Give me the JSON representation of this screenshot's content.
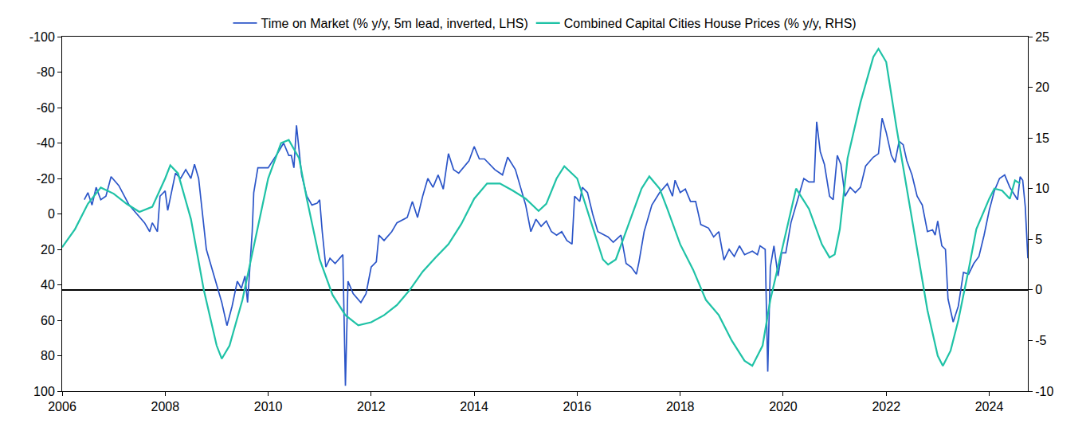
{
  "chart_data": {
    "type": "line",
    "legend": "top",
    "grid": false,
    "xlim": [
      2006,
      2024.75
    ],
    "xticks": [
      2006,
      2008,
      2010,
      2012,
      2014,
      2016,
      2018,
      2020,
      2022,
      2024
    ],
    "ylim": [
      100,
      -100
    ],
    "yticks": [
      -100,
      -80,
      -60,
      -40,
      -20,
      0,
      20,
      40,
      60,
      80,
      100
    ],
    "y2lim": [
      -10,
      25
    ],
    "y2ticks": [
      -10,
      -5,
      0,
      5,
      10,
      15,
      20,
      25
    ],
    "series": [
      {
        "name": "Time on Market (% y/y, 5m lead, inverted, LHS)",
        "color": "#2b55c8",
        "axis": "y",
        "line_style": "solid",
        "x": [
          2006.43,
          2006.5,
          2006.58,
          2006.66,
          2006.75,
          2006.85,
          2006.95,
          2007.1,
          2007.3,
          2007.45,
          2007.6,
          2007.7,
          2007.75,
          2007.85,
          2007.9,
          2008.0,
          2008.05,
          2008.2,
          2008.3,
          2008.4,
          2008.5,
          2008.57,
          2008.65,
          2008.8,
          2008.9,
          2008.95,
          2009.1,
          2009.2,
          2009.3,
          2009.4,
          2009.48,
          2009.55,
          2009.6,
          2009.69,
          2009.72,
          2009.8,
          2010.0,
          2010.2,
          2010.3,
          2010.4,
          2010.45,
          2010.5,
          2010.55,
          2010.65,
          2010.75,
          2010.85,
          2010.95,
          2011.0,
          2011.05,
          2011.12,
          2011.2,
          2011.3,
          2011.45,
          2011.5,
          2011.55,
          2011.65,
          2011.8,
          2011.9,
          2012.0,
          2012.1,
          2012.15,
          2012.25,
          2012.4,
          2012.5,
          2012.7,
          2012.8,
          2012.9,
          2013.0,
          2013.1,
          2013.2,
          2013.3,
          2013.4,
          2013.5,
          2013.6,
          2013.7,
          2013.9,
          2014.0,
          2014.1,
          2014.2,
          2014.4,
          2014.55,
          2014.65,
          2014.8,
          2014.9,
          2015.0,
          2015.1,
          2015.2,
          2015.3,
          2015.4,
          2015.5,
          2015.6,
          2015.7,
          2015.8,
          2015.9,
          2015.95,
          2016.05,
          2016.1,
          2016.2,
          2016.3,
          2016.4,
          2016.6,
          2016.7,
          2016.85,
          2016.95,
          2017.05,
          2017.15,
          2017.2,
          2017.3,
          2017.45,
          2017.6,
          2017.75,
          2017.85,
          2017.9,
          2018.0,
          2018.1,
          2018.2,
          2018.3,
          2018.4,
          2018.55,
          2018.65,
          2018.75,
          2018.85,
          2018.95,
          2019.05,
          2019.15,
          2019.25,
          2019.4,
          2019.5,
          2019.55,
          2019.65,
          2019.7,
          2019.75,
          2019.82,
          2019.9,
          2019.97,
          2020.05,
          2020.15,
          2020.3,
          2020.4,
          2020.5,
          2020.6,
          2020.65,
          2020.72,
          2020.8,
          2020.9,
          2020.97,
          2021.05,
          2021.12,
          2021.2,
          2021.3,
          2021.4,
          2021.5,
          2021.6,
          2021.75,
          2021.85,
          2021.92,
          2022.0,
          2022.1,
          2022.17,
          2022.25,
          2022.33,
          2022.4,
          2022.5,
          2022.6,
          2022.7,
          2022.8,
          2022.9,
          2022.95,
          2023.0,
          2023.08,
          2023.15,
          2023.2,
          2023.3,
          2023.4,
          2023.5,
          2023.6,
          2023.7,
          2023.8,
          2023.9,
          2024.0,
          2024.1,
          2024.2,
          2024.3,
          2024.4,
          2024.5,
          2024.55,
          2024.6,
          2024.65,
          2024.7,
          2024.75
        ],
        "values": [
          -8,
          -12,
          -5,
          -15,
          -8,
          -10,
          -21,
          -16,
          -5,
          0,
          5,
          10,
          5,
          10,
          -10,
          -13,
          -2,
          -23,
          -20,
          -25,
          -20,
          -28,
          -20,
          20,
          30,
          35,
          50,
          63,
          52,
          38,
          42,
          35,
          50,
          10,
          -12,
          -26,
          -26,
          -35,
          -40,
          -33,
          -33,
          -26,
          -50,
          -22,
          -10,
          -5,
          -6,
          -8,
          10,
          30,
          25,
          28,
          23,
          97,
          38,
          45,
          50,
          45,
          30,
          27,
          12,
          15,
          10,
          5,
          2,
          -7,
          2,
          -10,
          -20,
          -15,
          -22,
          -14,
          -34,
          -25,
          -23,
          -30,
          -38,
          -31,
          -31,
          -25,
          -22,
          -32,
          -25,
          -15,
          -5,
          10,
          3,
          7,
          4,
          10,
          12,
          10,
          15,
          17,
          -10,
          -7,
          -15,
          -12,
          0,
          10,
          13,
          16,
          12,
          28,
          30,
          34,
          27,
          10,
          -5,
          -12,
          -17,
          -10,
          -19,
          -12,
          -14,
          -7,
          -7,
          6,
          8,
          13,
          10,
          26,
          20,
          24,
          18,
          23,
          21,
          23,
          18,
          20,
          89,
          30,
          18,
          35,
          22,
          22,
          5,
          -10,
          -20,
          -18,
          -18,
          -52,
          -35,
          -28,
          -10,
          -8,
          -33,
          -28,
          -10,
          -15,
          -12,
          -15,
          -27,
          -32,
          -34,
          -54,
          -46,
          -33,
          -29,
          -41,
          -39,
          -30,
          -22,
          -10,
          -5,
          10,
          9,
          12,
          4,
          18,
          20,
          48,
          61,
          52,
          33,
          34,
          28,
          24,
          12,
          -2,
          -13,
          -20,
          -22,
          -15,
          -10,
          -8,
          -21,
          -19,
          -4,
          25
        ]
      },
      {
        "name": "Combined Capital Cities House Prices (% y/y, RHS)",
        "color": "#1fc2a6",
        "axis": "y2",
        "line_style": "solid",
        "x": [
          2006.0,
          2006.25,
          2006.5,
          2006.75,
          2007.0,
          2007.25,
          2007.5,
          2007.75,
          2008.0,
          2008.1,
          2008.25,
          2008.5,
          2008.75,
          2009.0,
          2009.1,
          2009.25,
          2009.5,
          2009.75,
          2010.0,
          2010.25,
          2010.4,
          2010.6,
          2010.75,
          2011.0,
          2011.25,
          2011.5,
          2011.75,
          2012.0,
          2012.25,
          2012.5,
          2012.75,
          2013.0,
          2013.25,
          2013.5,
          2013.75,
          2014.0,
          2014.25,
          2014.5,
          2014.75,
          2015.0,
          2015.25,
          2015.4,
          2015.6,
          2015.75,
          2016.0,
          2016.25,
          2016.5,
          2016.6,
          2016.75,
          2017.0,
          2017.25,
          2017.4,
          2017.6,
          2017.75,
          2018.0,
          2018.25,
          2018.5,
          2018.75,
          2019.0,
          2019.25,
          2019.4,
          2019.6,
          2019.75,
          2020.0,
          2020.25,
          2020.5,
          2020.75,
          2020.9,
          2021.0,
          2021.1,
          2021.25,
          2021.5,
          2021.75,
          2021.85,
          2022.0,
          2022.2,
          2022.4,
          2022.6,
          2022.8,
          2023.0,
          2023.1,
          2023.25,
          2023.4,
          2023.6,
          2023.75,
          2024.0,
          2024.1,
          2024.25,
          2024.4,
          2024.5,
          2024.6
        ],
        "values": [
          4.2,
          6,
          8.5,
          10.1,
          9.5,
          8.5,
          7.7,
          8.2,
          11,
          12.3,
          11.5,
          7,
          0,
          -5.5,
          -6.8,
          -5.5,
          -1,
          5,
          11,
          14.5,
          14.8,
          13,
          9,
          3,
          -0.5,
          -2.5,
          -3.5,
          -3.2,
          -2.5,
          -1.5,
          0,
          1.8,
          3.2,
          4.5,
          6.5,
          9,
          10.5,
          10.5,
          9.8,
          9,
          7.8,
          8.5,
          11,
          12.2,
          11,
          7,
          3,
          2.5,
          3,
          6.5,
          10,
          11.2,
          10,
          8,
          4.5,
          2,
          -1,
          -2.5,
          -5,
          -7,
          -7.5,
          -5.5,
          -1,
          4.5,
          10,
          8,
          4.5,
          3.2,
          3.5,
          6,
          13,
          18.5,
          23,
          23.8,
          22.5,
          16,
          10,
          4,
          -2,
          -6.5,
          -7.5,
          -6,
          -3,
          2,
          6,
          9,
          10,
          9.8,
          9,
          10.8,
          10.5
        ]
      }
    ]
  }
}
